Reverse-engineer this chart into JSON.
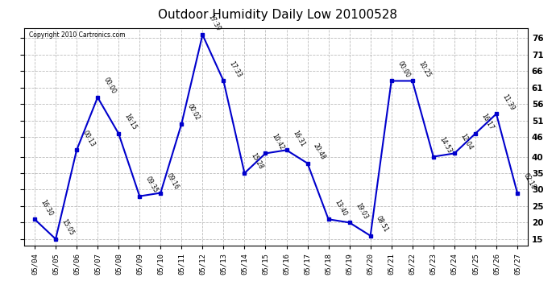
{
  "title": "Outdoor Humidity Daily Low 20100528",
  "copyright": "Copyright 2010 Cartronics.com",
  "line_color": "#0000CC",
  "marker_color": "#0000CC",
  "background_color": "#ffffff",
  "grid_color": "#bbbbbb",
  "x_labels": [
    "05/04",
    "05/05",
    "05/06",
    "05/07",
    "05/08",
    "05/09",
    "05/10",
    "05/11",
    "05/12",
    "05/13",
    "05/14",
    "05/15",
    "05/16",
    "05/17",
    "05/18",
    "05/19",
    "05/20",
    "05/21",
    "05/22",
    "05/23",
    "05/24",
    "05/25",
    "05/26",
    "05/27"
  ],
  "y_values": [
    21,
    15,
    42,
    58,
    47,
    28,
    29,
    50,
    77,
    63,
    35,
    41,
    42,
    38,
    21,
    20,
    16,
    63,
    63,
    40,
    41,
    47,
    53,
    29
  ],
  "point_labels": [
    "16:30",
    "15:05",
    "00:13",
    "00:00",
    "16:15",
    "09:35",
    "09:16",
    "00:02",
    "17:39",
    "17:33",
    "15:28",
    "10:42",
    "16:31",
    "20:48",
    "13:40",
    "19:03",
    "08:51",
    "00:00",
    "10:25",
    "14:53",
    "12:04",
    "16:17",
    "11:39",
    "02:18"
  ],
  "ylim": [
    13,
    79
  ],
  "right_ytick_positions": [
    76,
    71,
    66,
    61,
    56,
    51,
    46,
    40,
    35,
    30,
    25,
    20,
    15
  ],
  "right_ytick_labels": [
    "76",
    "71",
    "66",
    "61",
    "56",
    "51",
    "46",
    "40",
    "35",
    "30",
    "25",
    "20",
    "15"
  ]
}
